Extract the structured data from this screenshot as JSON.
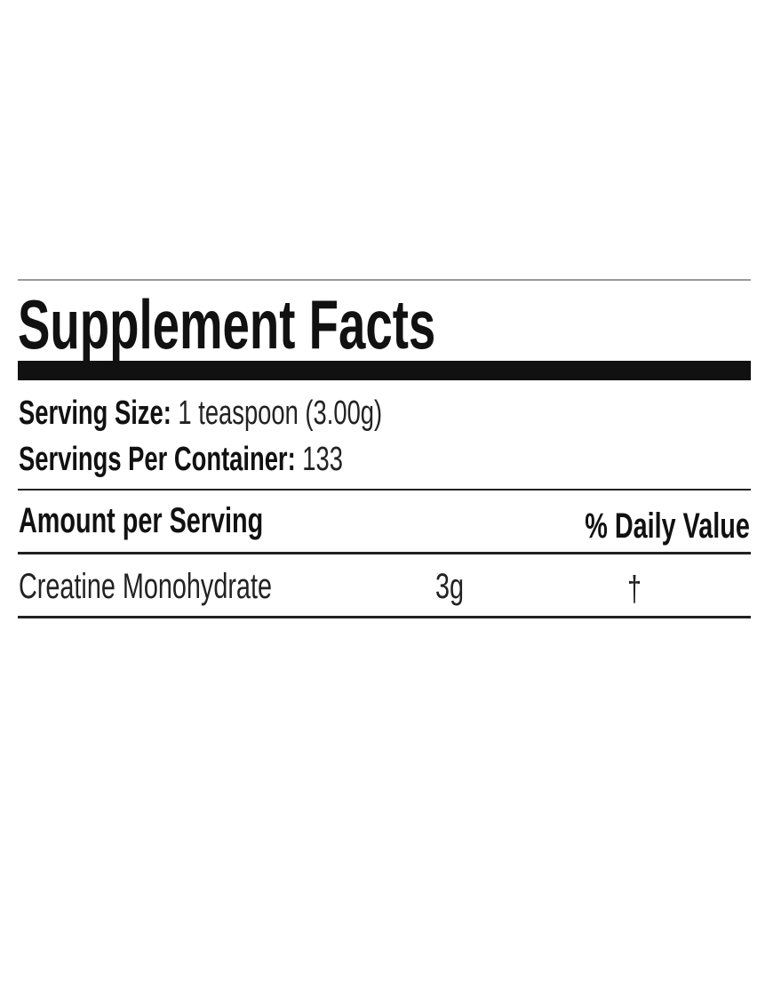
{
  "label": {
    "title": "Supplement Facts",
    "serving_size_label": "Serving Size:",
    "serving_size_value": "1 teaspoon (3.00g)",
    "servings_per_container_label": "Servings Per Container:",
    "servings_per_container_value": "133",
    "header_amount": "Amount per Serving",
    "header_daily_value": "% Daily Value",
    "rows": [
      {
        "name": "Creatine Monohydrate",
        "amount": "3g",
        "daily_value": "†"
      }
    ]
  }
}
